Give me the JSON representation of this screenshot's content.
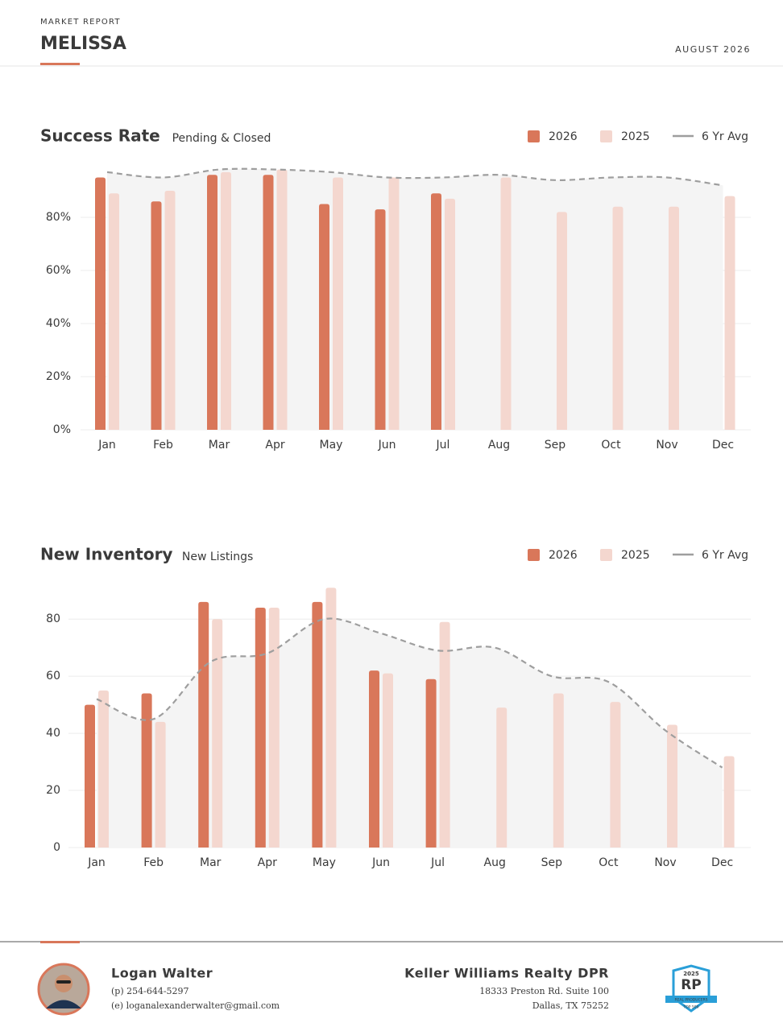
{
  "header": {
    "kicker": "MARKET REPORT",
    "title": "MELISSA",
    "date": "AUGUST 2026"
  },
  "chart_data": [
    {
      "type": "bar",
      "title": "Success Rate",
      "subtitle": "Pending & Closed",
      "categories": [
        "Jan",
        "Feb",
        "Mar",
        "Apr",
        "May",
        "Jun",
        "Jul",
        "Aug",
        "Sep",
        "Oct",
        "Nov",
        "Dec"
      ],
      "series": [
        {
          "name": "2026",
          "color": "#d9775a",
          "values": [
            95,
            86,
            96,
            96,
            85,
            83,
            89,
            null,
            null,
            null,
            null,
            null
          ]
        },
        {
          "name": "2025",
          "color": "#f4d7cf",
          "values": [
            89,
            90,
            97,
            98,
            95,
            95,
            87,
            95,
            82,
            84,
            84,
            88
          ]
        },
        {
          "name": "6 Yr Avg",
          "color": "#9e9e9e",
          "type": "line",
          "dashed": true,
          "area": true,
          "values": [
            97,
            95,
            98,
            98,
            97,
            95,
            95,
            96,
            94,
            95,
            95,
            92
          ]
        }
      ],
      "ylim": [
        0,
        100
      ],
      "yticks": [
        {
          "value": 0,
          "label": "0%"
        },
        {
          "value": 20,
          "label": "20%"
        },
        {
          "value": 40,
          "label": "40%"
        },
        {
          "value": 60,
          "label": "60%"
        },
        {
          "value": 80,
          "label": "80%"
        }
      ],
      "grid": true,
      "legend": "top-right"
    },
    {
      "type": "bar",
      "title": "New Inventory",
      "subtitle": "New Listings",
      "categories": [
        "Jan",
        "Feb",
        "Mar",
        "Apr",
        "May",
        "Jun",
        "Jul",
        "Aug",
        "Sep",
        "Oct",
        "Nov",
        "Dec"
      ],
      "series": [
        {
          "name": "2026",
          "color": "#d9775a",
          "values": [
            50,
            54,
            86,
            84,
            86,
            62,
            59,
            null,
            null,
            null,
            null,
            null
          ]
        },
        {
          "name": "2025",
          "color": "#f4d7cf",
          "values": [
            55,
            44,
            80,
            84,
            91,
            61,
            79,
            49,
            54,
            51,
            43,
            32
          ]
        },
        {
          "name": "6 Yr Avg",
          "color": "#9e9e9e",
          "type": "line",
          "dashed": true,
          "area": true,
          "values": [
            52,
            45,
            65,
            68,
            80,
            75,
            69,
            70,
            60,
            58,
            41,
            28
          ]
        }
      ],
      "ylim": [
        0,
        95
      ],
      "yticks": [
        0,
        20,
        40,
        60,
        80
      ],
      "grid": true,
      "legend": "top-right"
    }
  ],
  "footer": {
    "agent": {
      "name": "Logan Walter",
      "phone": "(p) 254-644-5297",
      "email": "(e) loganalexanderwalter@gmail.com"
    },
    "company": {
      "name": "Keller Williams Realty DPR",
      "address_line1": "18333 Preston Rd. Suite 100",
      "address_line2": "Dallas, TX 75252"
    },
    "badge": {
      "year": "2025",
      "logo": "RP",
      "caption": "REAL PRODUCERS",
      "rank": "TOP 500"
    }
  }
}
